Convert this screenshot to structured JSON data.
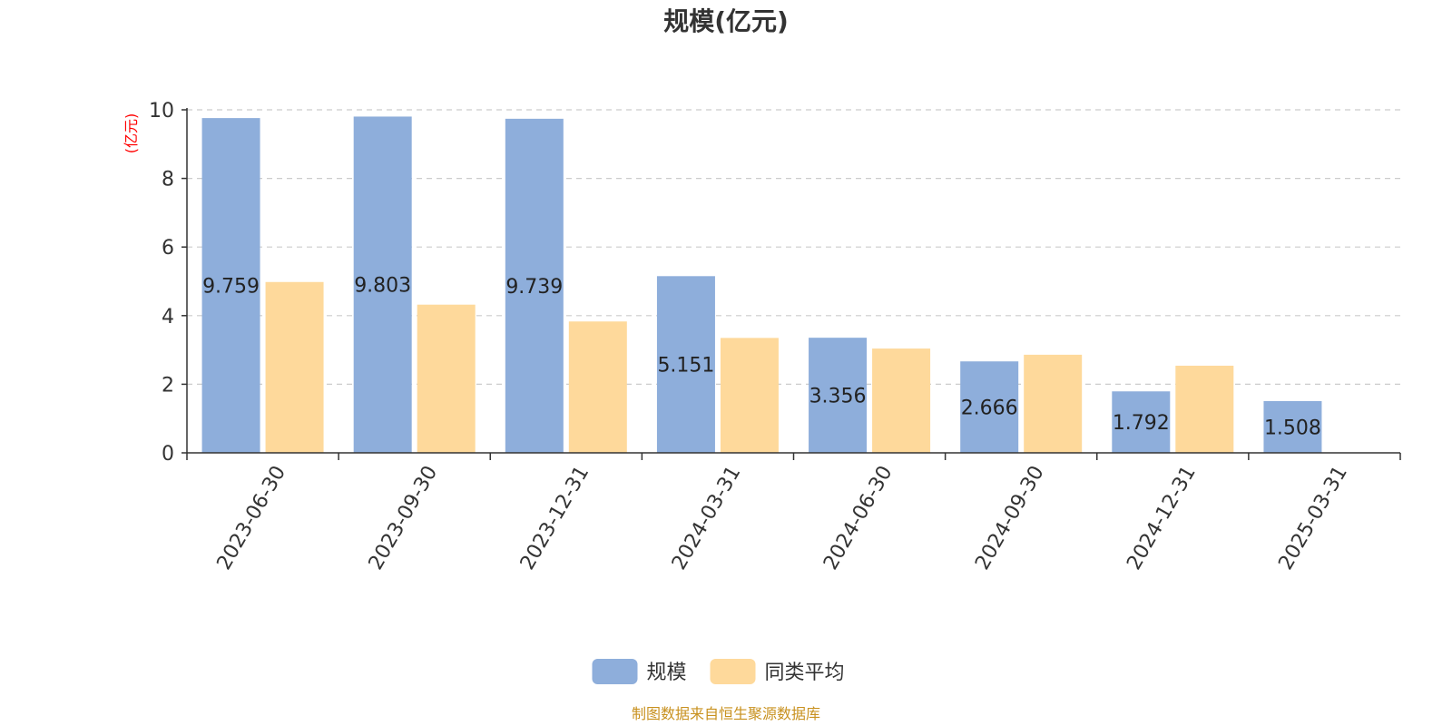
{
  "chart_data": {
    "type": "bar",
    "title": "规模(亿元)",
    "ylabel": "(亿元)",
    "xlabel": "",
    "categories": [
      "2023-06-30",
      "2023-09-30",
      "2023-12-31",
      "2024-03-31",
      "2024-06-30",
      "2024-09-30",
      "2024-12-31",
      "2025-03-31"
    ],
    "series": [
      {
        "name": "规模",
        "values": [
          9.759,
          9.803,
          9.739,
          5.151,
          3.356,
          2.666,
          1.792,
          1.508
        ],
        "color": "#8eaedb",
        "show_labels": true
      },
      {
        "name": "同类平均",
        "values": [
          4.98,
          4.32,
          3.83,
          3.35,
          3.04,
          2.86,
          2.54,
          null
        ],
        "color": "#fed99b",
        "show_labels": false
      }
    ],
    "ylim": [
      0,
      10
    ],
    "yticks": [
      0,
      2,
      4,
      6,
      8,
      10
    ],
    "grid": true,
    "legend_position": "bottom-center"
  },
  "source_note": "制图数据来自恒生聚源数据库",
  "colors": {
    "ylabel": "#ff0000",
    "source": "#c8911f",
    "grid": "#cccccc",
    "axis": "#333333"
  }
}
